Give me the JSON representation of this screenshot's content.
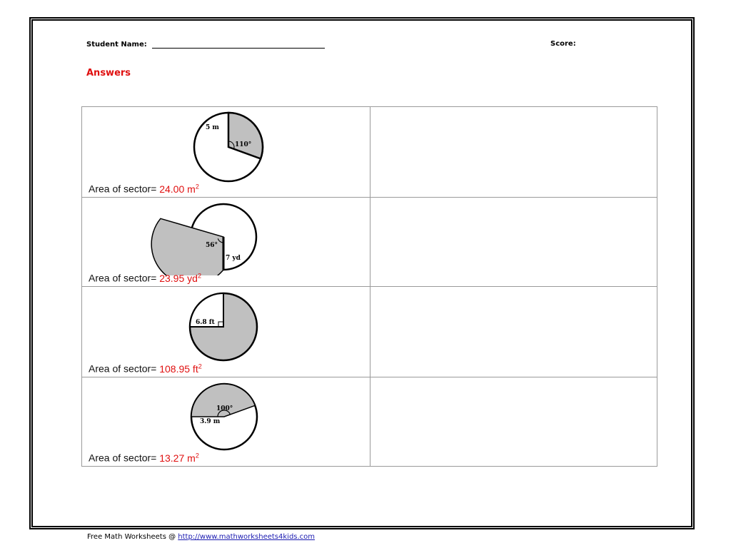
{
  "header": {
    "student_name_label": "Student Name:",
    "score_label": "Score:"
  },
  "answers_heading": "Answers",
  "problems": [
    {
      "diagram_labels": [
        "5 m",
        "110°"
      ],
      "area_label": "Area of sector=",
      "area_number": "24.00 m",
      "area_exponent": "2"
    },
    {
      "diagram_labels": [
        "56°",
        "7 yd"
      ],
      "area_label": "Area of sector=",
      "area_number": "23.95 yd",
      "area_exponent": "2"
    },
    {
      "diagram_labels": [
        "6.8 ft"
      ],
      "area_label": "Area of sector=",
      "area_number": "108.95 ft",
      "area_exponent": "2"
    },
    {
      "diagram_labels": [
        "100°",
        "3.9 m"
      ],
      "area_label": "Area of sector=",
      "area_number": "13.27 m",
      "area_exponent": "2"
    }
  ],
  "footer": {
    "prefix": "Free Math Worksheets @ ",
    "link_text": "http://www.mathworksheets4kids.com"
  },
  "colors": {
    "answer_red": "#e01010",
    "sector_gray": "#c0c0c0",
    "link_blue": "#1a1ab0"
  }
}
